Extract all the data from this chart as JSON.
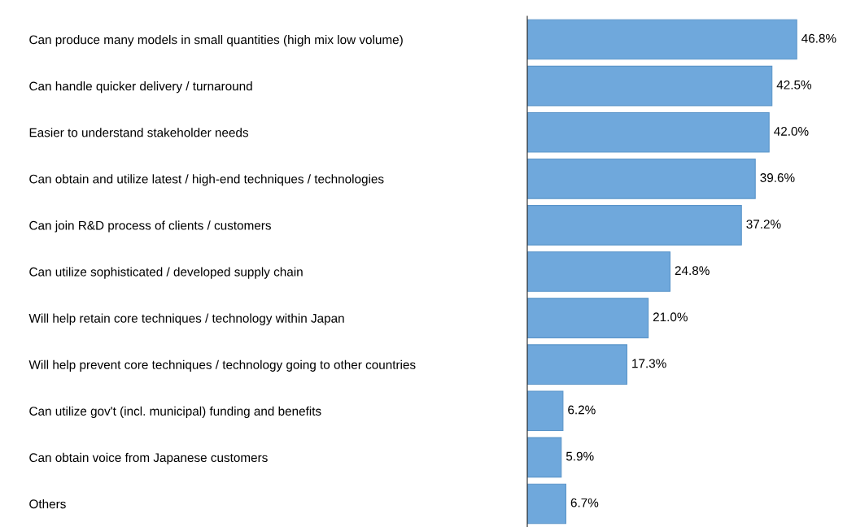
{
  "chart_data": {
    "type": "bar",
    "orientation": "horizontal",
    "categories": [
      "Can produce many models in small quantities (high mix low volume)",
      "Can handle quicker delivery / turnaround",
      "Easier to understand stakeholder needs",
      "Can obtain and utilize latest / high-end techniques / technologies",
      "Can join R&D process of clients / customers",
      "Can utilize sophisticated / developed supply chain",
      "Will help retain core techniques / technology within Japan",
      "Will help prevent core techniques / technology going to other countries",
      "Can utilize gov't (incl. municipal) funding and benefits",
      "Can obtain voice from Japanese customers",
      "Others"
    ],
    "values": [
      46.8,
      42.5,
      42.0,
      39.6,
      37.2,
      24.8,
      21.0,
      17.3,
      6.2,
      5.9,
      6.7
    ],
    "value_labels": [
      "46.8%",
      "42.5%",
      "42.0%",
      "39.6%",
      "37.2%",
      "24.8%",
      "21.0%",
      "17.3%",
      "6.2%",
      "5.9%",
      "6.7%"
    ],
    "color": "#6fa8dc",
    "tick_labels": "y",
    "grid": false,
    "legend": false
  }
}
